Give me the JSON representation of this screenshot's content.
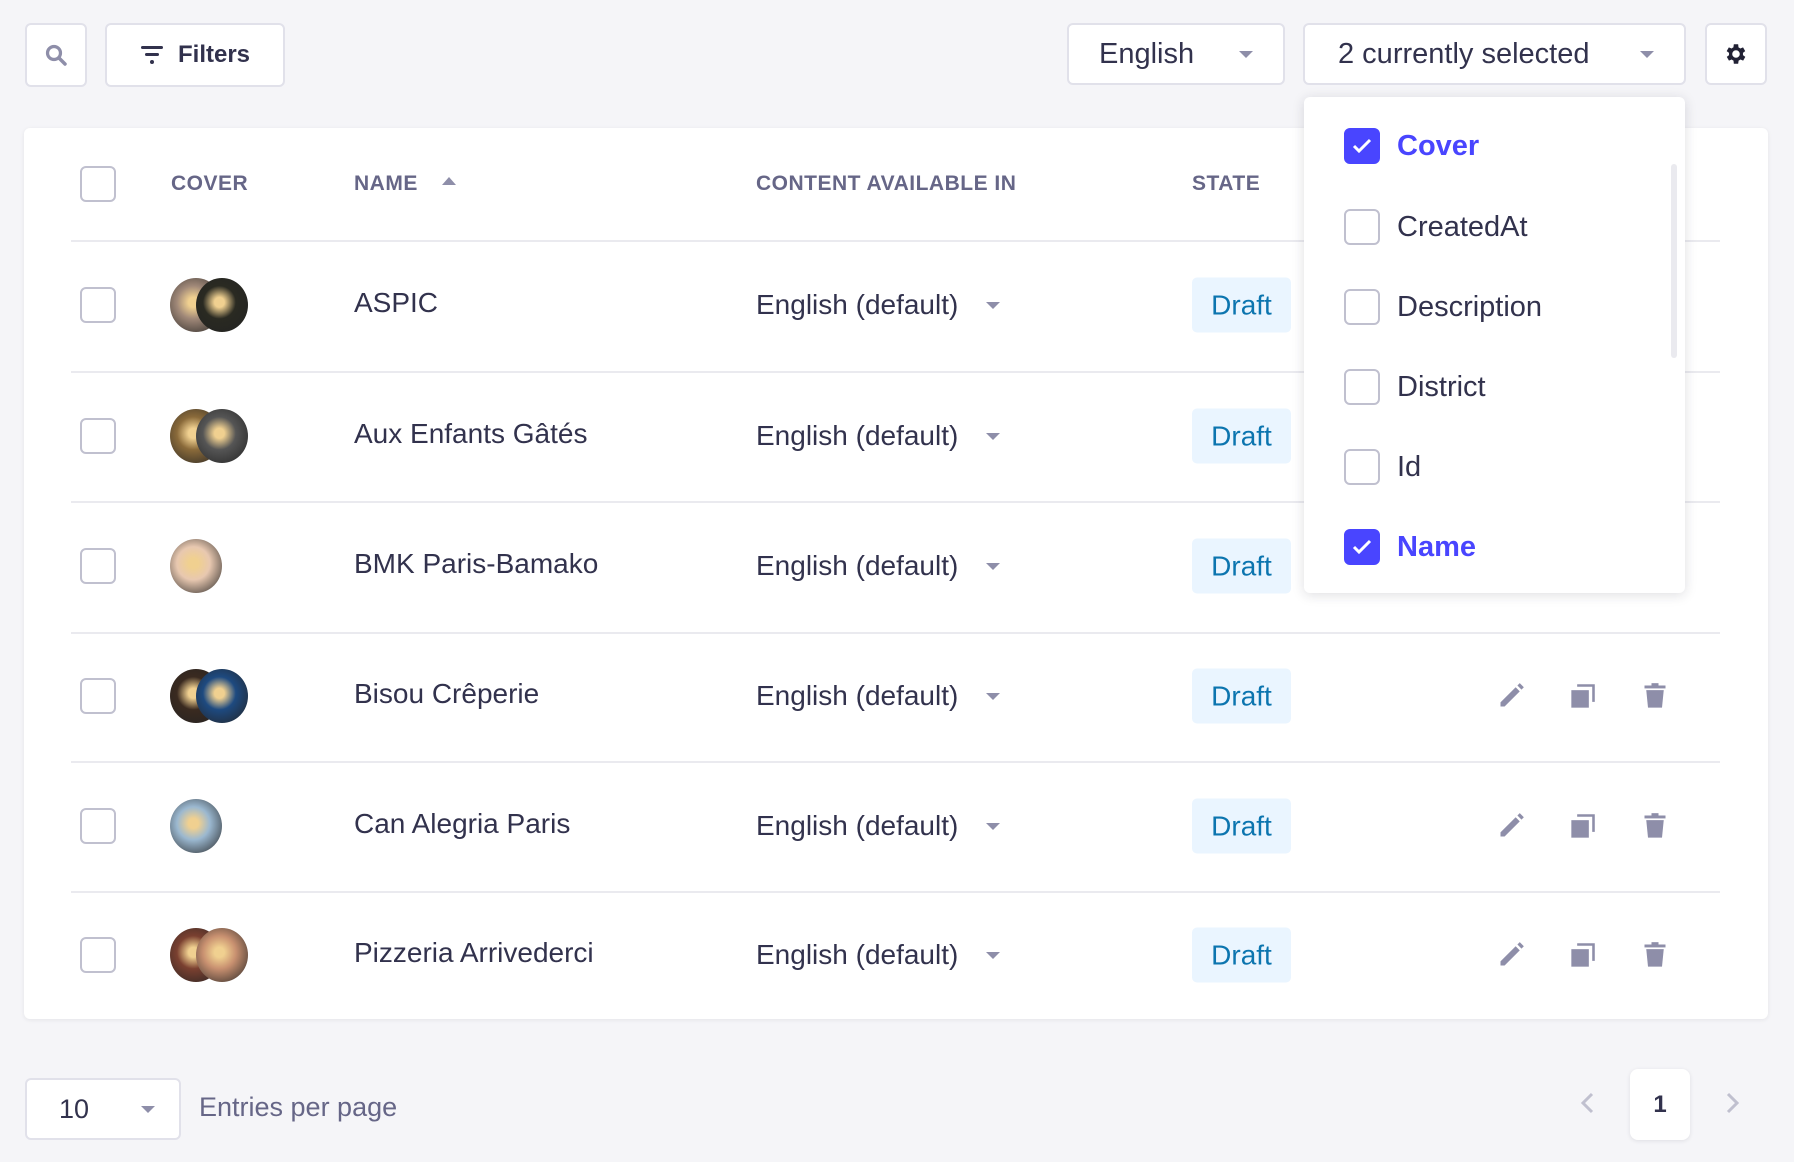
{
  "toolbar": {
    "filters_label": "Filters",
    "locale": "English",
    "columns_selected": "2 currently selected"
  },
  "table": {
    "headers": {
      "cover": "COVER",
      "name": "NAME",
      "content": "CONTENT AVAILABLE IN",
      "state": "STATE"
    },
    "sort": {
      "column": "name",
      "direction": "ascending"
    },
    "rows": [
      {
        "name": "ASPIC",
        "content": "English (default)",
        "state": "Draft"
      },
      {
        "name": "Aux Enfants Gâtés",
        "content": "English (default)",
        "state": "Draft"
      },
      {
        "name": "BMK Paris-Bamako",
        "content": "English (default)",
        "state": "Draft"
      },
      {
        "name": "Bisou Crêperie",
        "content": "English (default)",
        "state": "Draft"
      },
      {
        "name": "Can Alegria Paris",
        "content": "English (default)",
        "state": "Draft"
      },
      {
        "name": "Pizzeria Arrivederci",
        "content": "English (default)",
        "state": "Draft"
      }
    ]
  },
  "column_picker": {
    "options": [
      {
        "label": "Cover",
        "checked": true
      },
      {
        "label": "CreatedAt",
        "checked": false
      },
      {
        "label": "Description",
        "checked": false
      },
      {
        "label": "District",
        "checked": false
      },
      {
        "label": "Id",
        "checked": false
      },
      {
        "label": "Name",
        "checked": true
      }
    ]
  },
  "footer": {
    "per_page": "10",
    "per_page_label": "Entries per page",
    "current_page": "1"
  },
  "colors": {
    "accent": "#4945ff",
    "badge_bg": "#eaf5ff",
    "badge_text": "#0c75af",
    "icon": "#8e8ea9"
  }
}
